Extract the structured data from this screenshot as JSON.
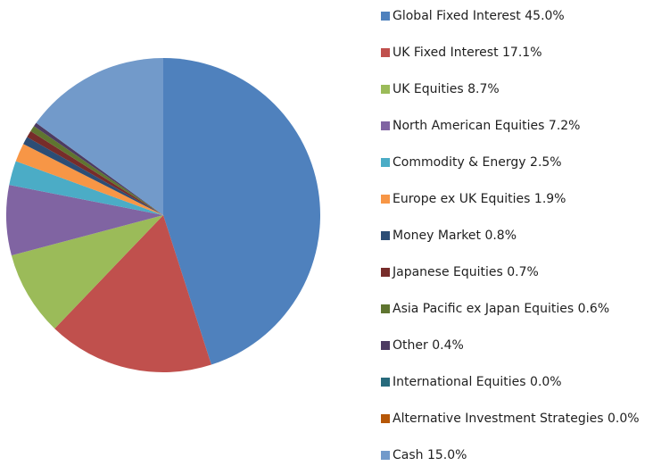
{
  "chart_data": {
    "type": "pie",
    "categories": [
      "Global Fixed Interest",
      "UK Fixed Interest",
      "UK Equities",
      "North American Equities",
      "Commodity & Energy",
      "Europe ex UK Equities",
      "Money Market",
      "Japanese Equities",
      "Asia Pacific ex Japan Equities",
      "Other",
      "International Equities",
      "Alternative Investment Strategies",
      "Cash"
    ],
    "values": [
      45.0,
      17.1,
      8.7,
      7.2,
      2.5,
      1.9,
      0.8,
      0.7,
      0.6,
      0.4,
      0.0,
      0.0,
      15.0
    ],
    "value_labels": [
      "45.0%",
      "17.1%",
      "8.7%",
      "7.2%",
      "2.5%",
      "1.9%",
      "0.8%",
      "0.7%",
      "0.6%",
      "0.4%",
      "0.0%",
      "0.0%",
      "15.0%"
    ],
    "colors": [
      "#4f81bd",
      "#c0504d",
      "#9bbb59",
      "#8064a2",
      "#4bacc6",
      "#f79646",
      "#2c4d75",
      "#772c2a",
      "#5f7530",
      "#4d3b62",
      "#276a7c",
      "#b65708",
      "#729aca"
    ],
    "legend": "right"
  }
}
